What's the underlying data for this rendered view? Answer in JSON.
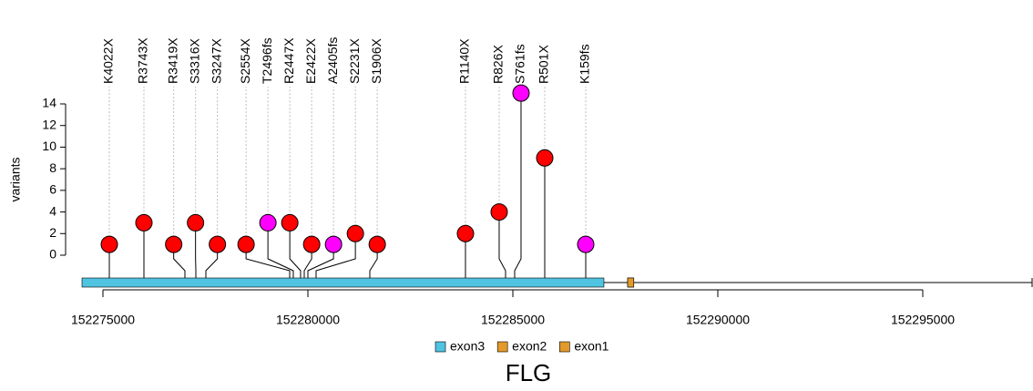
{
  "chart_data": {
    "type": "lollipop",
    "title": "FLG",
    "y_label": "variants",
    "ylim": [
      0,
      14
    ],
    "yticks": [
      0,
      2,
      4,
      6,
      8,
      10,
      12,
      14
    ],
    "xlim": [
      152274489,
      152297667
    ],
    "xticks": [
      152275000,
      152280000,
      152285000,
      152290000,
      152295000
    ],
    "variants": [
      {
        "label": "K4022X",
        "x": 152275156,
        "value": 1,
        "color": "#ff0000"
      },
      {
        "label": "R3743X",
        "x": 152276000,
        "value": 3,
        "color": "#ff0000"
      },
      {
        "label": "R3419X",
        "x": 152277000,
        "value": 1,
        "color": "#ff0000"
      },
      {
        "label": "S3316X",
        "x": 152277267,
        "value": 3,
        "color": "#ff0000"
      },
      {
        "label": "S3247X",
        "x": 152277511,
        "value": 1,
        "color": "#ff0000"
      },
      {
        "label": "S2554X",
        "x": 152279556,
        "value": 1,
        "color": "#ff0000"
      },
      {
        "label": "T2496fs",
        "x": 152279644,
        "value": 3,
        "color": "#ff00ff"
      },
      {
        "label": "R2447X",
        "x": 152279822,
        "value": 3,
        "color": "#ff0000"
      },
      {
        "label": "E2422X",
        "x": 152279911,
        "value": 1,
        "color": "#ff0000"
      },
      {
        "label": "A2405fs",
        "x": 152280000,
        "value": 1,
        "color": "#ff00ff"
      },
      {
        "label": "S2231X",
        "x": 152280200,
        "value": 2,
        "color": "#ff0000"
      },
      {
        "label": "S1906X",
        "x": 152281511,
        "value": 1,
        "color": "#ff0000"
      },
      {
        "label": "R1140X",
        "x": 152283844,
        "value": 2,
        "color": "#ff0000"
      },
      {
        "label": "R826X",
        "x": 152284822,
        "value": 4,
        "color": "#ff0000"
      },
      {
        "label": "S761fs",
        "x": 152285044,
        "value": 15,
        "color": "#ff00ff"
      },
      {
        "label": "R501X",
        "x": 152285778,
        "value": 9,
        "color": "#ff0000"
      },
      {
        "label": "K159fs",
        "x": 152286778,
        "value": 1,
        "color": "#ff00ff"
      }
    ],
    "features": [
      {
        "name": "exon3",
        "start": 152274489,
        "end": 152287222,
        "color": "#4fc3e0"
      },
      {
        "name": "exon2",
        "start": 152287800,
        "end": 152287950,
        "color": "#e39a2b"
      },
      {
        "name": "exon1",
        "start": 152287800,
        "end": 152287950,
        "color": "#e39a2b"
      }
    ]
  }
}
